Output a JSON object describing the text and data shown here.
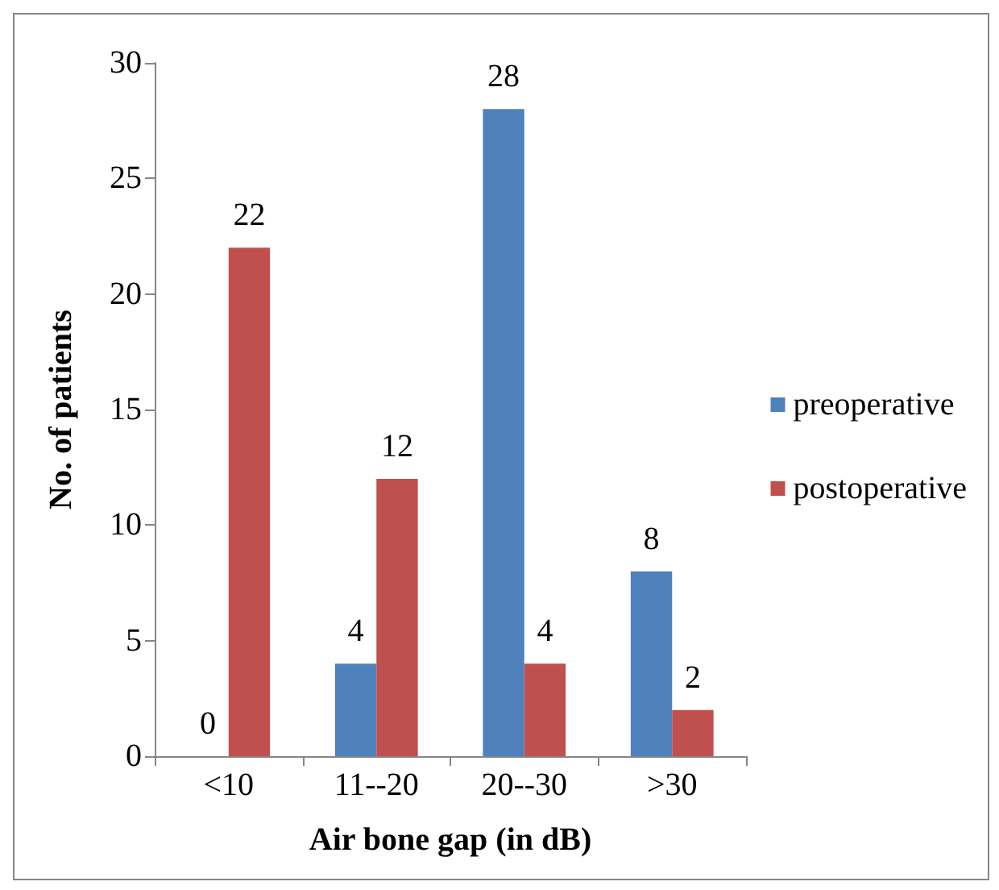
{
  "chart_data": {
    "type": "bar",
    "xlabel": "Air bone gap (in dB)",
    "ylabel": "No. of patients",
    "categories": [
      "<10",
      "11--20",
      "20--30",
      ">30"
    ],
    "series": [
      {
        "name": "preoperative",
        "color": "#4f81bd",
        "values": [
          0,
          4,
          28,
          8
        ]
      },
      {
        "name": "postoperative",
        "color": "#c0504d",
        "values": [
          22,
          12,
          4,
          2
        ]
      }
    ],
    "ylim": [
      0,
      30
    ],
    "yticks": [
      0,
      5,
      10,
      15,
      20,
      25,
      30
    ],
    "grid": false,
    "legend": "right",
    "data_labels": true
  }
}
